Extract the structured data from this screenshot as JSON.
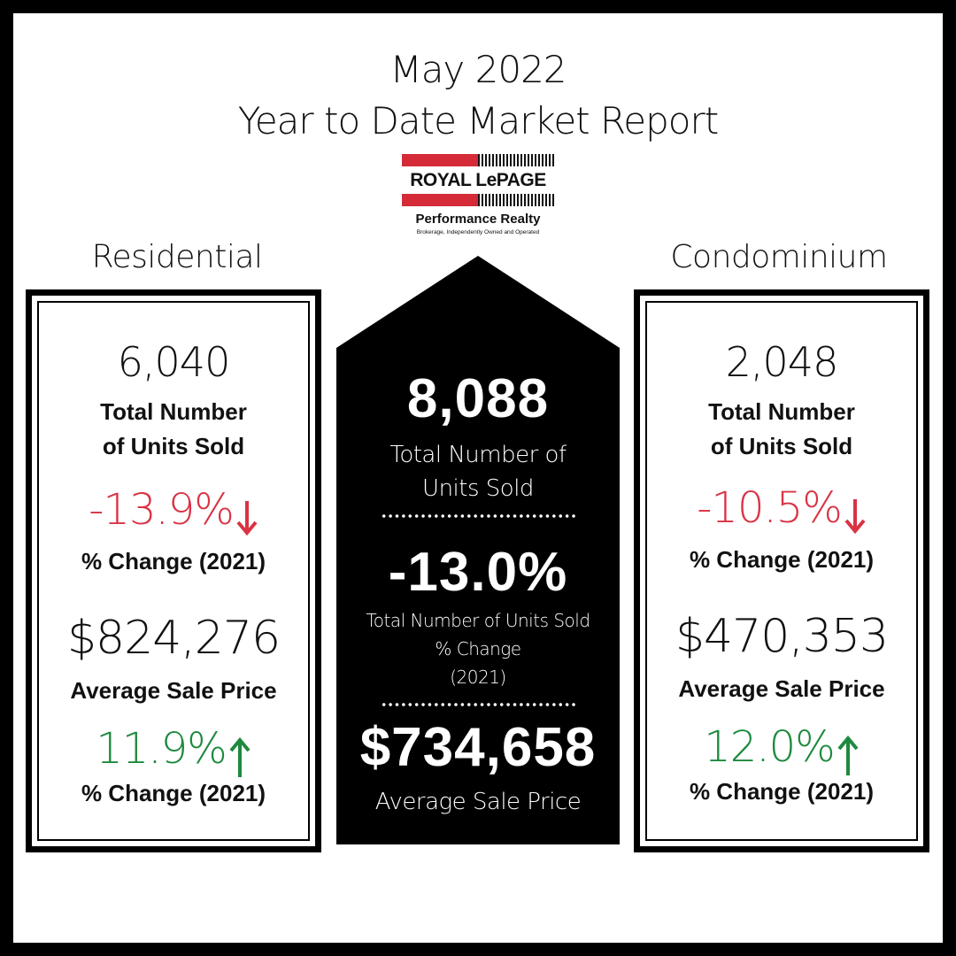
{
  "header": {
    "line1": "May 2022",
    "line2": "Year to Date Market Report"
  },
  "logo": {
    "brand": "ROYAL LePAGE",
    "subtitle": "Performance Realty",
    "tagline": "Brokerage, Independently Owned and Operated",
    "accent_color": "#d52b38"
  },
  "residential": {
    "label": "Residential",
    "units_sold": "6,040",
    "units_label_1": "Total Number",
    "units_label_2": "of Units Sold",
    "units_change": "-13.9%",
    "units_change_direction": "down",
    "units_change_label": "% Change (2021)",
    "avg_price": "$824,276",
    "avg_price_label": "Average Sale Price",
    "price_change": "11.9%",
    "price_change_direction": "up",
    "price_change_label": "% Change (2021)"
  },
  "total": {
    "units_sold": "8,088",
    "units_label_1": "Total Number of",
    "units_label_2": "Units Sold",
    "units_change": "-13.0%",
    "units_change_label_1": "Total Number of Units Sold",
    "units_change_label_2": "% Change",
    "units_change_label_3": "(2021)",
    "avg_price": "$734,658",
    "avg_price_label": "Average Sale Price"
  },
  "condominium": {
    "label": "Condominium",
    "units_sold": "2,048",
    "units_label_1": "Total Number",
    "units_label_2": "of Units Sold",
    "units_change": "-10.5%",
    "units_change_direction": "down",
    "units_change_label": "% Change (2021)",
    "avg_price": "$470,353",
    "avg_price_label": "Average Sale Price",
    "price_change": "12.0%",
    "price_change_direction": "up",
    "price_change_label": "% Change (2021)"
  },
  "colors": {
    "negative": "#d93344",
    "positive": "#1e8a3e",
    "house_fill": "#000000"
  }
}
